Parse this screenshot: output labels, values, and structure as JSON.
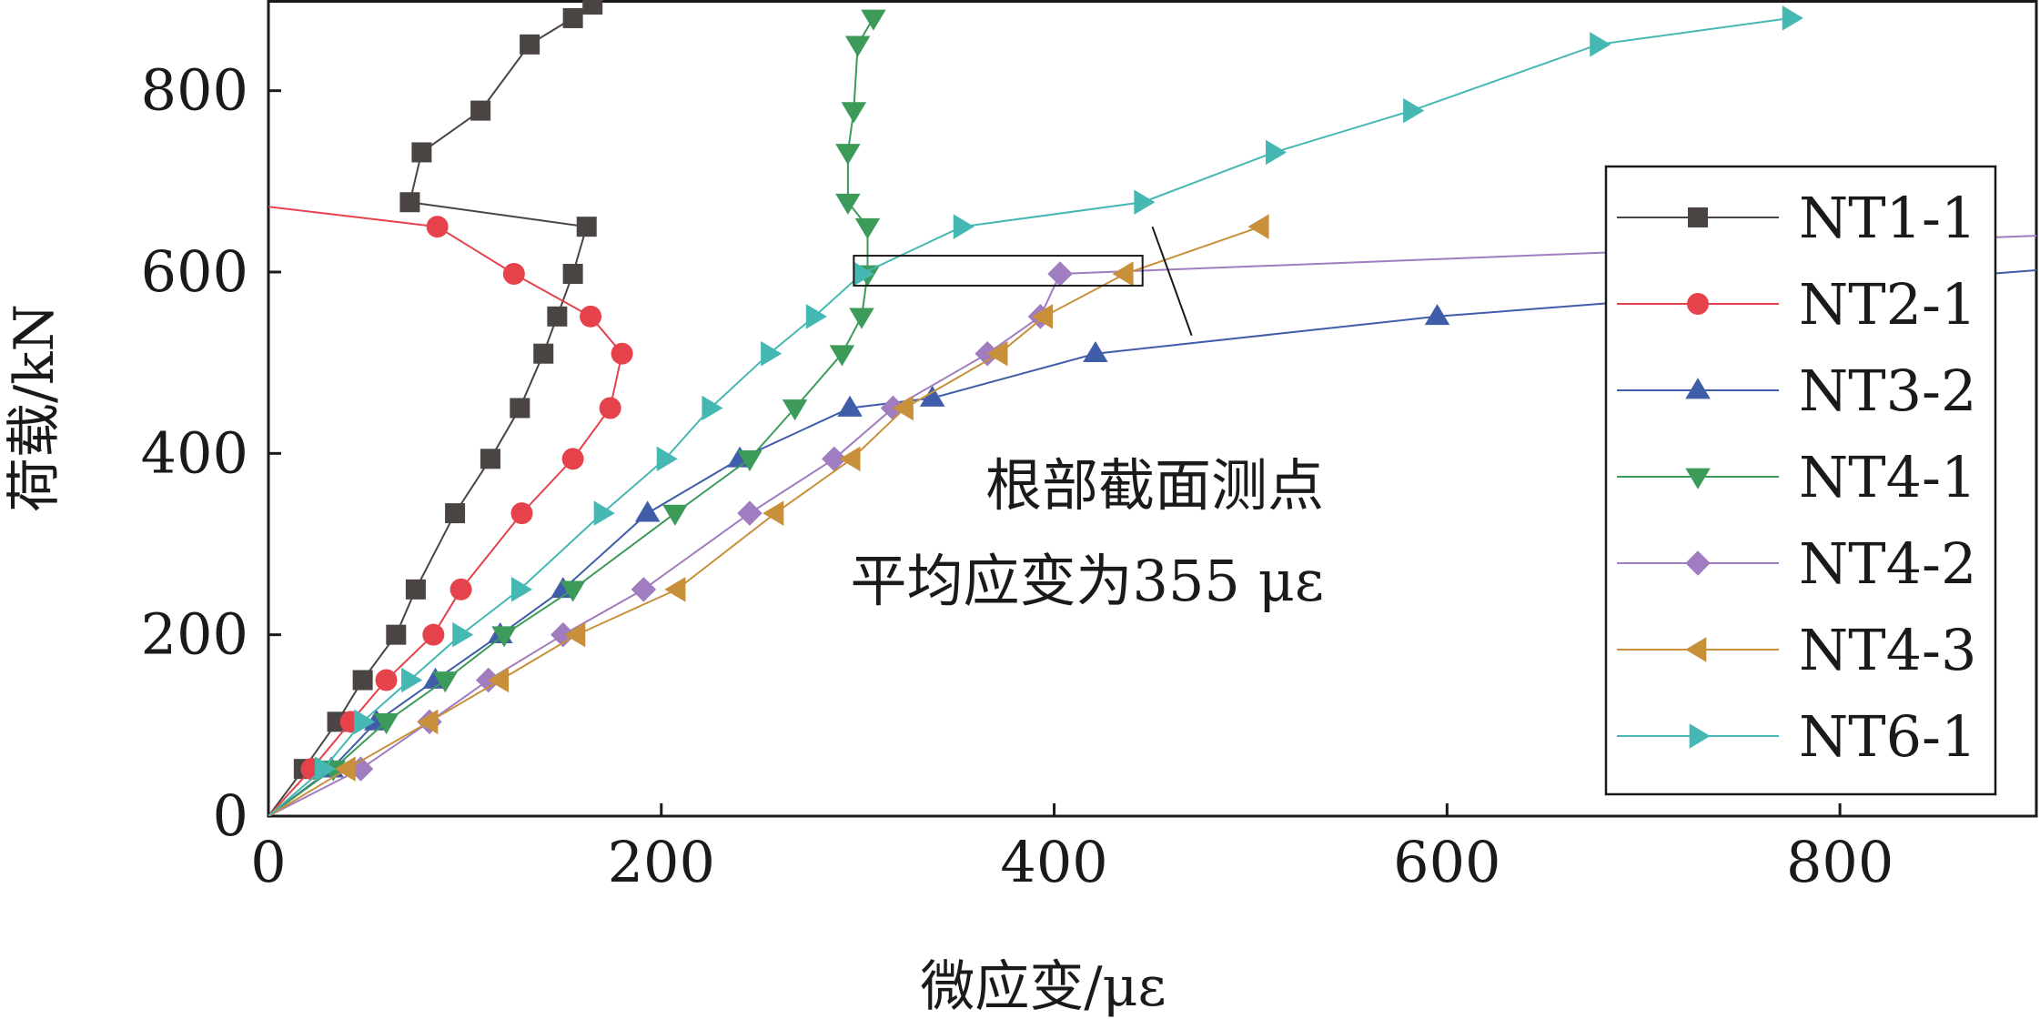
{
  "chart_data": {
    "type": "line",
    "title": "",
    "xlabel": "微应变/με",
    "ylabel": "荷载/kN",
    "xlim": [
      0,
      900
    ],
    "ylim": [
      0,
      900
    ],
    "x_ticks": [
      0,
      200,
      400,
      600,
      800
    ],
    "y_ticks": [
      0,
      200,
      400,
      600,
      800
    ],
    "x_tick_labels": [
      "0",
      "200",
      "400",
      "600",
      "800"
    ],
    "y_tick_labels": [
      "0",
      "200",
      "400",
      "600",
      "800"
    ],
    "grid": false,
    "legend_position": "right",
    "series": [
      {
        "name": "NT1-1",
        "color": "#4a4542",
        "marker": "square",
        "points": [
          [
            0,
            0
          ],
          [
            18,
            52
          ],
          [
            35,
            104
          ],
          [
            48,
            150
          ],
          [
            65,
            200
          ],
          [
            75,
            250
          ],
          [
            95,
            334
          ],
          [
            113,
            394
          ],
          [
            128,
            450
          ],
          [
            140,
            510
          ],
          [
            147,
            551
          ],
          [
            155,
            598
          ],
          [
            162,
            650
          ],
          [
            72,
            677
          ],
          [
            78,
            732
          ],
          [
            108,
            778
          ],
          [
            133,
            851
          ],
          [
            155,
            880
          ],
          [
            165,
            895
          ]
        ]
      },
      {
        "name": "NT2-1",
        "color": "#e5424b",
        "marker": "circle",
        "points": [
          [
            0,
            0
          ],
          [
            22,
            52
          ],
          [
            42,
            104
          ],
          [
            60,
            150
          ],
          [
            84,
            200
          ],
          [
            98,
            250
          ],
          [
            129,
            334
          ],
          [
            155,
            394
          ],
          [
            174,
            450
          ],
          [
            180,
            510
          ],
          [
            164,
            551
          ],
          [
            125,
            598
          ],
          [
            86,
            650
          ],
          [
            0,
            672
          ]
        ]
      },
      {
        "name": "NT3-2",
        "color": "#3f5da8",
        "marker": "triangle-up",
        "points": [
          [
            0,
            0
          ],
          [
            32,
            52
          ],
          [
            55,
            104
          ],
          [
            85,
            150
          ],
          [
            118,
            200
          ],
          [
            150,
            250
          ],
          [
            193,
            334
          ],
          [
            240,
            394
          ],
          [
            296,
            450
          ],
          [
            338,
            461
          ],
          [
            421,
            510
          ],
          [
            595,
            551
          ],
          [
            900,
            602
          ]
        ]
      },
      {
        "name": "NT4-1",
        "color": "#3d9b5a",
        "marker": "triangle-down",
        "points": [
          [
            0,
            0
          ],
          [
            33,
            52
          ],
          [
            60,
            104
          ],
          [
            90,
            150
          ],
          [
            120,
            200
          ],
          [
            155,
            250
          ],
          [
            207,
            334
          ],
          [
            245,
            394
          ],
          [
            268,
            450
          ],
          [
            292,
            510
          ],
          [
            302,
            551
          ],
          [
            305,
            598
          ],
          [
            305,
            650
          ],
          [
            295,
            677
          ],
          [
            295,
            732
          ],
          [
            298,
            778
          ],
          [
            300,
            851
          ],
          [
            308,
            880
          ]
        ]
      },
      {
        "name": "NT4-2",
        "color": "#a07cc0",
        "marker": "diamond",
        "points": [
          [
            0,
            0
          ],
          [
            47,
            52
          ],
          [
            82,
            104
          ],
          [
            112,
            150
          ],
          [
            150,
            200
          ],
          [
            191,
            250
          ],
          [
            245,
            334
          ],
          [
            288,
            394
          ],
          [
            318,
            450
          ],
          [
            366,
            510
          ],
          [
            393,
            551
          ],
          [
            403,
            598
          ],
          [
            900,
            640
          ]
        ]
      },
      {
        "name": "NT4-3",
        "color": "#c8903a",
        "marker": "triangle-left",
        "points": [
          [
            0,
            0
          ],
          [
            40,
            52
          ],
          [
            82,
            104
          ],
          [
            118,
            150
          ],
          [
            157,
            200
          ],
          [
            208,
            250
          ],
          [
            258,
            334
          ],
          [
            297,
            394
          ],
          [
            324,
            450
          ],
          [
            372,
            510
          ],
          [
            395,
            551
          ],
          [
            436,
            598
          ],
          [
            505,
            650
          ]
        ]
      },
      {
        "name": "NT6-1",
        "color": "#46b8b3",
        "marker": "triangle-right",
        "points": [
          [
            0,
            0
          ],
          [
            28,
            52
          ],
          [
            48,
            104
          ],
          [
            72,
            150
          ],
          [
            98,
            200
          ],
          [
            128,
            250
          ],
          [
            170,
            334
          ],
          [
            202,
            394
          ],
          [
            225,
            450
          ],
          [
            255,
            510
          ],
          [
            278,
            551
          ],
          [
            302,
            598
          ],
          [
            353,
            650
          ],
          [
            445,
            677
          ],
          [
            512,
            732
          ],
          [
            582,
            778
          ],
          [
            677,
            851
          ],
          [
            775,
            880
          ]
        ]
      }
    ],
    "annotation": {
      "lines": [
        "根部截面测点",
        "平均应变为355 με"
      ],
      "box_x": [
        298,
        445
      ],
      "box_y": [
        585,
        618
      ],
      "pointer_from": [
        450,
        650
      ],
      "pointer_to": [
        470,
        530
      ]
    }
  }
}
